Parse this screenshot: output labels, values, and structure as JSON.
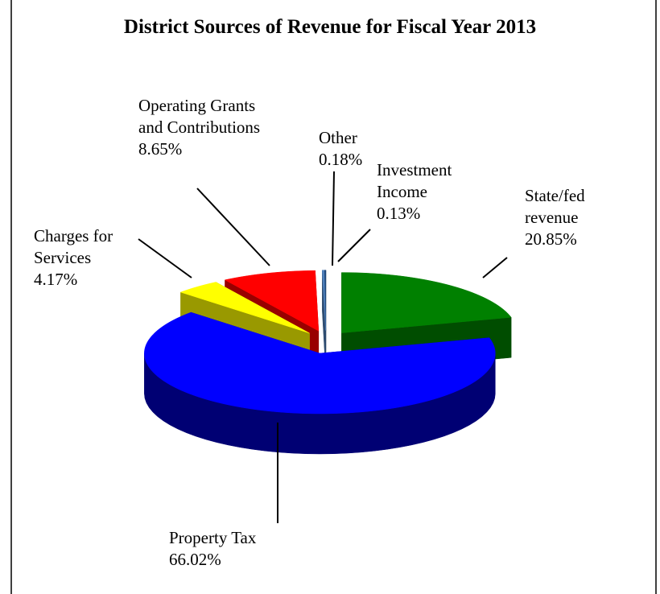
{
  "chart_data": {
    "type": "pie",
    "title": "District Sources of Revenue for Fiscal Year 2013",
    "categories": [
      "State/fed revenue",
      "Property Tax",
      "Charges for Services",
      "Operating Grants and Contributions",
      "Other",
      "Investment Income"
    ],
    "values": [
      20.85,
      66.02,
      4.17,
      8.65,
      0.18,
      0.13
    ],
    "value_labels": [
      "20.85%",
      "66.02%",
      "4.17%",
      "8.65%",
      "0.18%",
      "0.13%"
    ],
    "colors": [
      "#008000",
      "#0000ff",
      "#ffff00",
      "#ff0000",
      "#4f81bd",
      "#1f497d"
    ]
  }
}
